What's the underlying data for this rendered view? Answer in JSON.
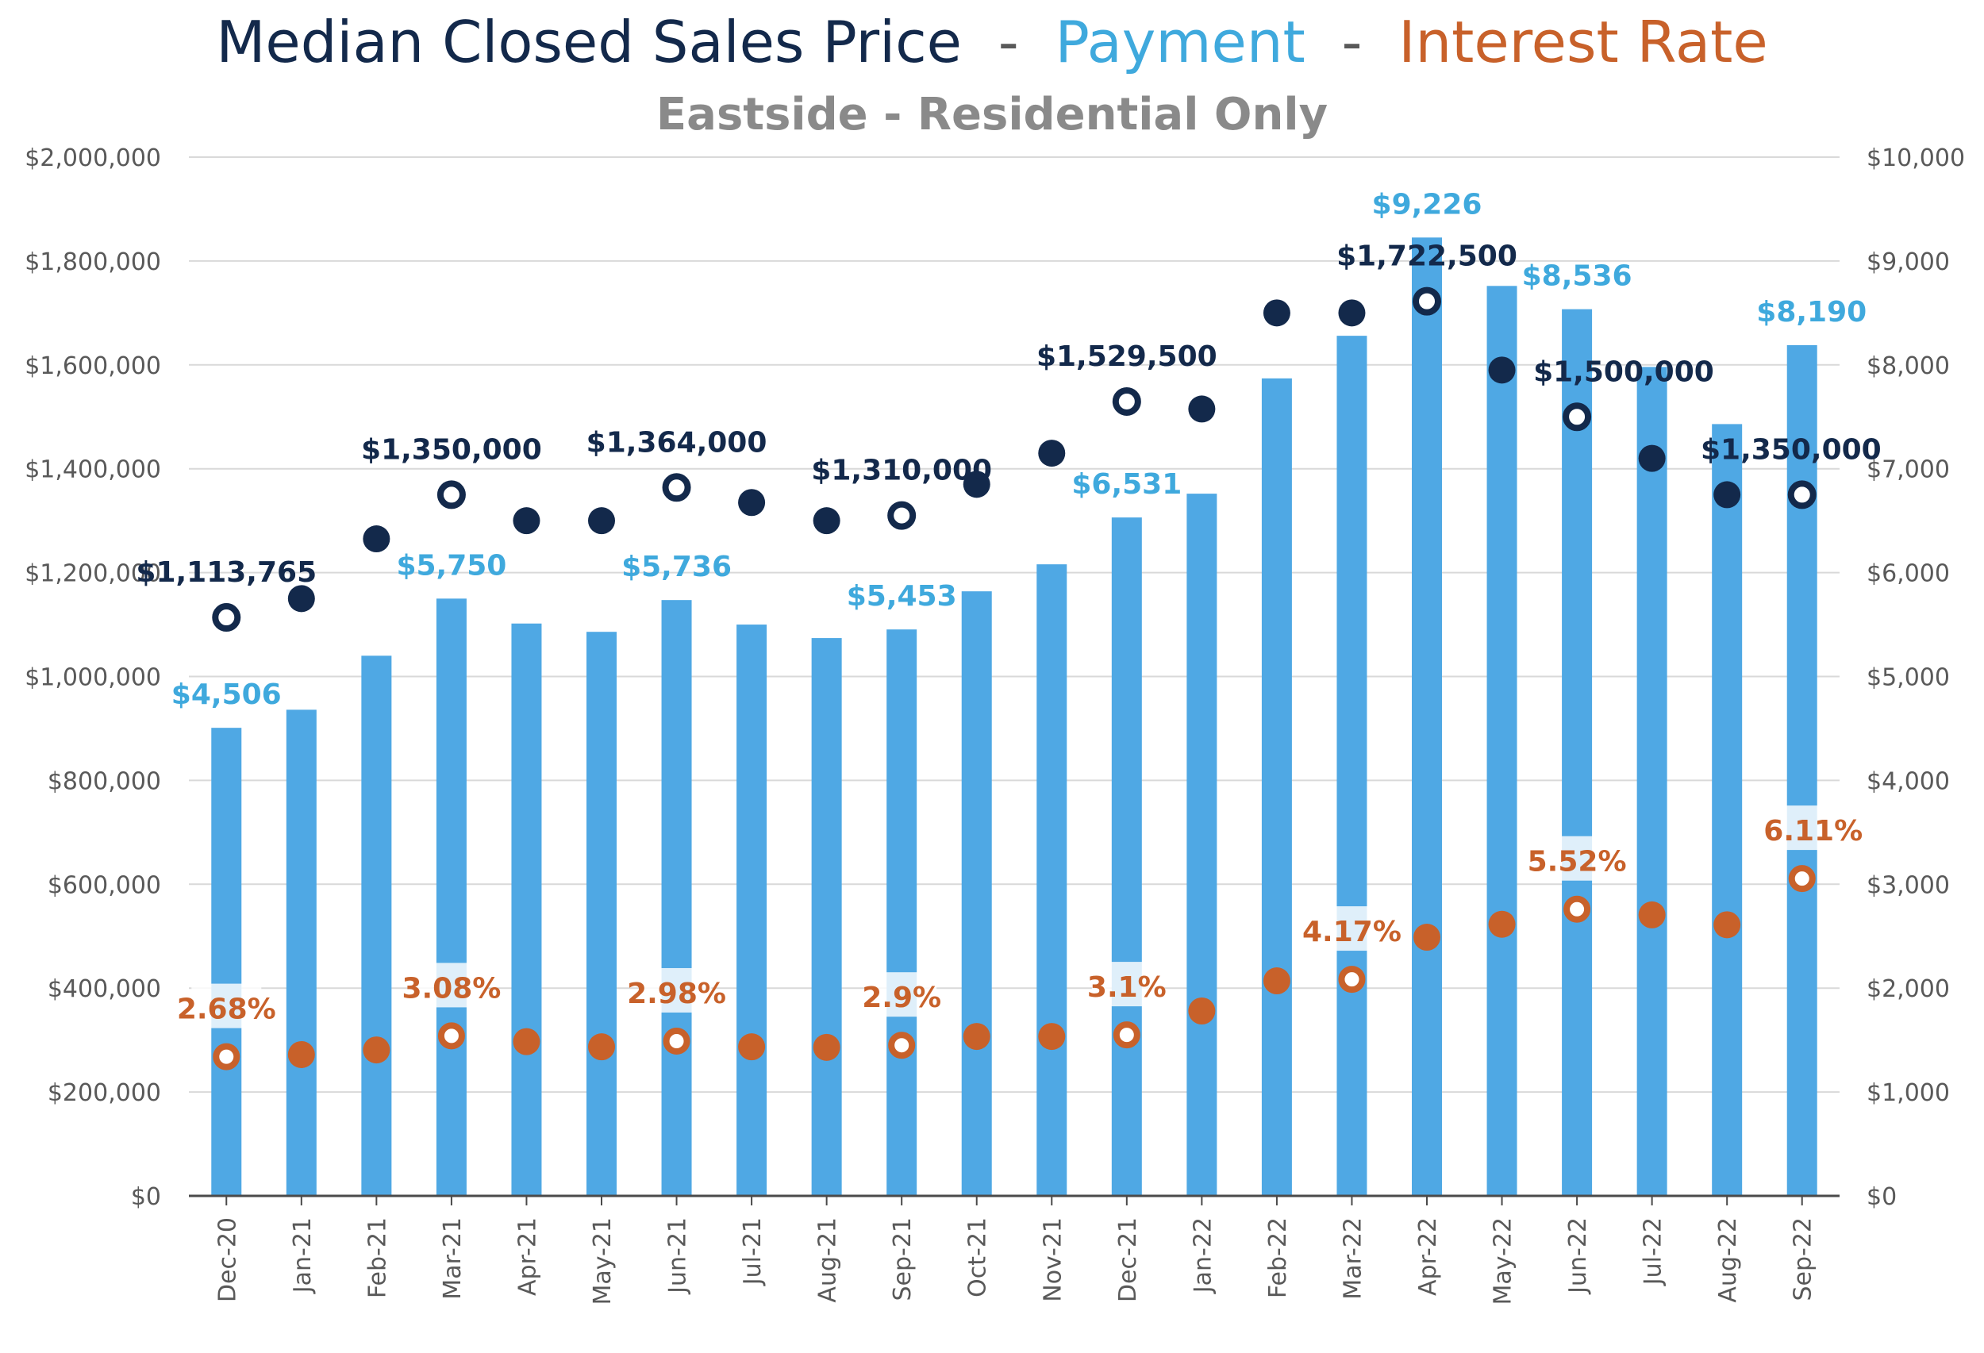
{
  "chart_data": {
    "type": "bar",
    "title_parts": [
      {
        "text": "Median Closed Sales Price",
        "color": "#13294b"
      },
      {
        "text": "  -  ",
        "color": "#595959"
      },
      {
        "text": "Payment",
        "color": "#3fa9dd"
      },
      {
        "text": "  -  ",
        "color": "#595959"
      },
      {
        "text": "Interest Rate",
        "color": "#c8612a"
      }
    ],
    "subtitle": "Eastside - Residential Only",
    "categories": [
      "Dec-20",
      "Jan-21",
      "Feb-21",
      "Mar-21",
      "Apr-21",
      "May-21",
      "Jun-21",
      "Jul-21",
      "Aug-21",
      "Sep-21",
      "Oct-21",
      "Nov-21",
      "Dec-21",
      "Jan-22",
      "Feb-22",
      "Mar-22",
      "Apr-22",
      "May-22",
      "Jun-22",
      "Jul-22",
      "Aug-22",
      "Sep-22"
    ],
    "left_axis": {
      "min": 0,
      "max": 2000000,
      "step": 200000,
      "ticks": [
        "$0",
        "$200,000",
        "$400,000",
        "$600,000",
        "$800,000",
        "$1,000,000",
        "$1,200,000",
        "$1,400,000",
        "$1,600,000",
        "$1,800,000",
        "$2,000,000"
      ]
    },
    "right_axis": {
      "min": 0,
      "max": 10000,
      "step": 1000,
      "ticks": [
        "$0",
        "$1,000",
        "$2,000",
        "$3,000",
        "$4,000",
        "$5,000",
        "$6,000",
        "$7,000",
        "$8,000",
        "$9,000",
        "$10,000"
      ]
    },
    "series": [
      {
        "name": "Payment",
        "kind": "bar",
        "axis": "right",
        "color": "#4fa8e4",
        "values": [
          4506,
          4680,
          5200,
          5750,
          5510,
          5430,
          5736,
          5500,
          5370,
          5453,
          5820,
          6080,
          6531,
          6760,
          7870,
          8280,
          9226,
          8760,
          8536,
          7980,
          7430,
          8190
        ]
      },
      {
        "name": "Median Closed Sales Price",
        "kind": "point",
        "axis": "left",
        "color": "#13294b",
        "values": [
          1113765,
          1150000,
          1265000,
          1350000,
          1300000,
          1300000,
          1364000,
          1335000,
          1300000,
          1310000,
          1370000,
          1430000,
          1529500,
          1515000,
          1700000,
          1700000,
          1722500,
          1590000,
          1500000,
          1420000,
          1350000,
          1350000
        ]
      },
      {
        "name": "Interest Rate",
        "kind": "point",
        "axis": "left",
        "axis_scale": "percent_to_left_axis_x_100000",
        "color": "#c8612a",
        "values": [
          2.68,
          2.72,
          2.81,
          3.08,
          2.97,
          2.87,
          2.98,
          2.87,
          2.86,
          2.9,
          3.07,
          3.07,
          3.1,
          3.56,
          4.14,
          4.17,
          4.98,
          5.23,
          5.52,
          5.41,
          5.22,
          6.11
        ]
      }
    ],
    "annotations": {
      "price": [
        {
          "index": 0,
          "text": "$1,113,765"
        },
        {
          "index": 3,
          "text": "$1,350,000"
        },
        {
          "index": 6,
          "text": "$1,364,000"
        },
        {
          "index": 9,
          "text": "$1,310,000"
        },
        {
          "index": 12,
          "text": "$1,529,500"
        },
        {
          "index": 16,
          "text": "$1,722,500"
        },
        {
          "index": 18,
          "text": "$1,500,000"
        },
        {
          "index": 21,
          "text": "$1,350,000"
        }
      ],
      "payment": [
        {
          "index": 0,
          "text": "$4,506"
        },
        {
          "index": 3,
          "text": "$5,750"
        },
        {
          "index": 6,
          "text": "$5,736"
        },
        {
          "index": 9,
          "text": "$5,453"
        },
        {
          "index": 12,
          "text": "$6,531"
        },
        {
          "index": 16,
          "text": "$9,226"
        },
        {
          "index": 18,
          "text": "$8,536"
        },
        {
          "index": 21,
          "text": "$8,190"
        }
      ],
      "rate": [
        {
          "index": 0,
          "text": "2.68%"
        },
        {
          "index": 3,
          "text": "3.08%"
        },
        {
          "index": 6,
          "text": "2.98%"
        },
        {
          "index": 9,
          "text": "2.9%"
        },
        {
          "index": 12,
          "text": "3.1%"
        },
        {
          "index": 15,
          "text": "4.17%"
        },
        {
          "index": 18,
          "text": "5.52%"
        },
        {
          "index": 21,
          "text": "6.11%"
        }
      ]
    },
    "grid": true,
    "legend": "none"
  }
}
